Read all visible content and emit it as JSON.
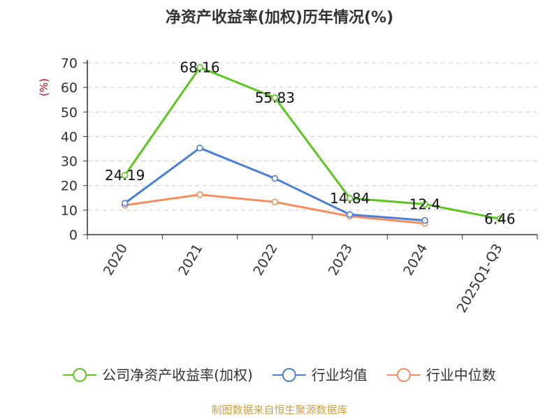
{
  "chart_data": {
    "type": "line",
    "title": "净资产收益率(加权)历年情况(%)",
    "ylabel": "(%)",
    "xlabel": "",
    "categories": [
      "2020",
      "2021",
      "2022",
      "2023",
      "2024",
      "2025Q1-Q3"
    ],
    "ylim": [
      0,
      70
    ],
    "yticks": [
      "0",
      "10",
      "20",
      "30",
      "40",
      "50",
      "60",
      "70"
    ],
    "grid": "horizontal-dashed",
    "legend_position": "bottom",
    "series": [
      {
        "name": "公司净资产收益率(加权)",
        "color": "#5cc620",
        "values": [
          24.19,
          68.16,
          55.83,
          14.84,
          12.4,
          6.46
        ],
        "labels": [
          "24.19",
          "68.16",
          "55.83",
          "14.84",
          "12.4",
          "6.46"
        ]
      },
      {
        "name": "行业均值",
        "color": "#4a7fd6",
        "values": [
          12.8,
          35.3,
          22.9,
          8.2,
          5.8,
          null
        ]
      },
      {
        "name": "行业中位数",
        "color": "#f58d5c",
        "values": [
          12.0,
          16.3,
          13.3,
          7.5,
          4.6,
          null
        ]
      }
    ],
    "source": "制图数据来自恒生聚源数据库"
  }
}
